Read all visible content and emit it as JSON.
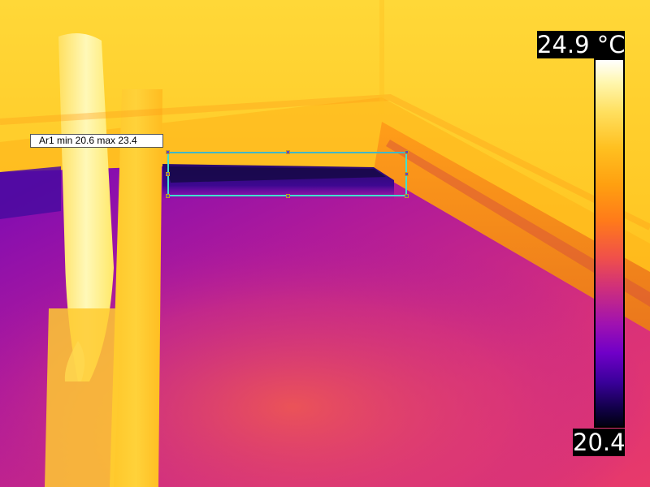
{
  "measurement": {
    "area_label": "Ar1 min 20.6 max 23.4"
  },
  "scale": {
    "max": "24.9 °C",
    "min": "20.4",
    "palette": "iron",
    "colors": {
      "hot": "#ffffff",
      "warm": "#ffc020",
      "mid": "#f0504a",
      "cool": "#a012b0",
      "cold": "#000010"
    }
  },
  "box_color": "#40e0d0"
}
